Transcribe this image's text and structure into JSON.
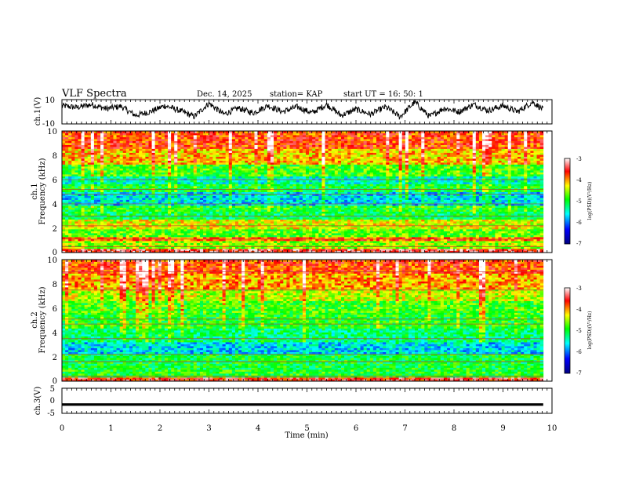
{
  "header": {
    "title": "VLF Spectra",
    "date": "Dec. 14, 2025",
    "station": "station= KAP",
    "start_time": "start  UT  =   16: 50: 1"
  },
  "chart_data": [
    {
      "type": "line",
      "name": "ch1-waveform",
      "ylabel": "ch.1(V)",
      "ylim": [
        -10,
        10
      ],
      "yticks": [
        "10",
        "-10"
      ],
      "xlim": [
        0,
        10
      ],
      "trace_end_min": 9.82,
      "shape": [
        [
          0,
          5
        ],
        [
          0.3,
          3.5
        ],
        [
          0.6,
          6
        ],
        [
          0.9,
          2.5
        ],
        [
          1.2,
          4.5
        ],
        [
          1.5,
          -3
        ],
        [
          1.8,
          0
        ],
        [
          2.1,
          5
        ],
        [
          2.4,
          1
        ],
        [
          2.7,
          -4
        ],
        [
          3.0,
          7
        ],
        [
          3.3,
          -2
        ],
        [
          3.6,
          3
        ],
        [
          3.9,
          -1
        ],
        [
          4.2,
          5
        ],
        [
          4.5,
          0
        ],
        [
          4.8,
          4
        ],
        [
          5.1,
          -1
        ],
        [
          5.4,
          6
        ],
        [
          5.7,
          -3
        ],
        [
          6.0,
          2
        ],
        [
          6.3,
          -2
        ],
        [
          6.6,
          4
        ],
        [
          6.9,
          -4
        ],
        [
          7.2,
          8
        ],
        [
          7.5,
          -4
        ],
        [
          7.8,
          3
        ],
        [
          8.1,
          0
        ],
        [
          8.4,
          6
        ],
        [
          8.7,
          1
        ],
        [
          9.0,
          5
        ],
        [
          9.3,
          0
        ],
        [
          9.6,
          8
        ],
        [
          9.82,
          2
        ]
      ]
    },
    {
      "type": "heatmap",
      "name": "ch1-spectrogram",
      "ylabel": "Frequency (kHz)",
      "channel_label": "ch.1",
      "ylim": [
        0,
        10
      ],
      "yticks": [
        "0",
        "2",
        "4",
        "6",
        "8",
        "10"
      ],
      "xlim": [
        0,
        10
      ],
      "data_end_min": 9.82,
      "colorbar": {
        "label": "log(PSD)(V²/Hz)",
        "range": [
          -7,
          -3
        ],
        "ticks": [
          "-3",
          "-4",
          "-5",
          "-6",
          "-7"
        ]
      },
      "bands_log_psd": [
        {
          "f": [
            0,
            0.4
          ],
          "v": -3.5
        },
        {
          "f": [
            0.4,
            0.9
          ],
          "v": -4.6
        },
        {
          "f": [
            0.9,
            1.3
          ],
          "v": -3.9
        },
        {
          "f": [
            1.3,
            2.0
          ],
          "v": -4.8
        },
        {
          "f": [
            2.0,
            2.8
          ],
          "v": -4.4
        },
        {
          "f": [
            2.8,
            3.4
          ],
          "v": -5.2
        },
        {
          "f": [
            3.4,
            3.9
          ],
          "v": -5.0
        },
        {
          "f": [
            3.9,
            5.0
          ],
          "v": -5.7
        },
        {
          "f": [
            5.0,
            5.6
          ],
          "v": -5.1
        },
        {
          "f": [
            5.6,
            6.3
          ],
          "v": -5.5
        },
        {
          "f": [
            6.3,
            7.3
          ],
          "v": -4.9
        },
        {
          "f": [
            7.3,
            8.6
          ],
          "v": -4.2
        },
        {
          "f": [
            8.6,
            10.0
          ],
          "v": -3.8
        }
      ],
      "lines_khz": [
        0.5,
        1.1,
        2.2,
        3.0,
        4.0,
        4.8,
        5.2,
        6.0
      ]
    },
    {
      "type": "heatmap",
      "name": "ch2-spectrogram",
      "ylabel": "Frequency (kHz)",
      "channel_label": "ch.2",
      "ylim": [
        0,
        10
      ],
      "yticks": [
        "0",
        "2",
        "4",
        "6",
        "8",
        "10"
      ],
      "xlim": [
        0,
        10
      ],
      "data_end_min": 9.82,
      "colorbar": {
        "label": "log(PSD)(V²/Hz)",
        "range": [
          -7,
          -3
        ],
        "ticks": [
          "-3",
          "-4",
          "-5",
          "-6",
          "-7"
        ]
      },
      "bands_log_psd": [
        {
          "f": [
            0,
            0.3
          ],
          "v": -3.6
        },
        {
          "f": [
            0.3,
            1.0
          ],
          "v": -5.0
        },
        {
          "f": [
            1.0,
            2.2
          ],
          "v": -5.1
        },
        {
          "f": [
            2.2,
            3.2
          ],
          "v": -5.7
        },
        {
          "f": [
            3.2,
            4.4
          ],
          "v": -5.3
        },
        {
          "f": [
            4.4,
            5.6
          ],
          "v": -5.0
        },
        {
          "f": [
            5.6,
            6.6
          ],
          "v": -4.9
        },
        {
          "f": [
            6.6,
            7.6
          ],
          "v": -4.5
        },
        {
          "f": [
            7.6,
            8.8
          ],
          "v": -4.1
        },
        {
          "f": [
            8.8,
            10.0
          ],
          "v": -3.8
        }
      ],
      "lines_khz": [
        0.4,
        1.6,
        2.2,
        3.5,
        4.7,
        5.1,
        7.5,
        9.0
      ]
    },
    {
      "type": "line",
      "name": "ch3-waveform",
      "ylabel": "ch.3(V)",
      "ylim": [
        -5,
        5
      ],
      "yticks": [
        "5",
        "0",
        "-5"
      ],
      "xlim": [
        0,
        10
      ],
      "trace_end_min": 9.82,
      "level_v": -1.5,
      "band_halfwidth_v": 0.5
    }
  ],
  "xaxis": {
    "label": "Time  (min)",
    "ticks": [
      "0",
      "1",
      "2",
      "3",
      "4",
      "5",
      "6",
      "7",
      "8",
      "9",
      "10"
    ]
  },
  "colors": {
    "scale": [
      "#000080",
      "#0000ff",
      "#00ffff",
      "#00ff00",
      "#ffff00",
      "#ff0000",
      "#ffffff"
    ]
  }
}
